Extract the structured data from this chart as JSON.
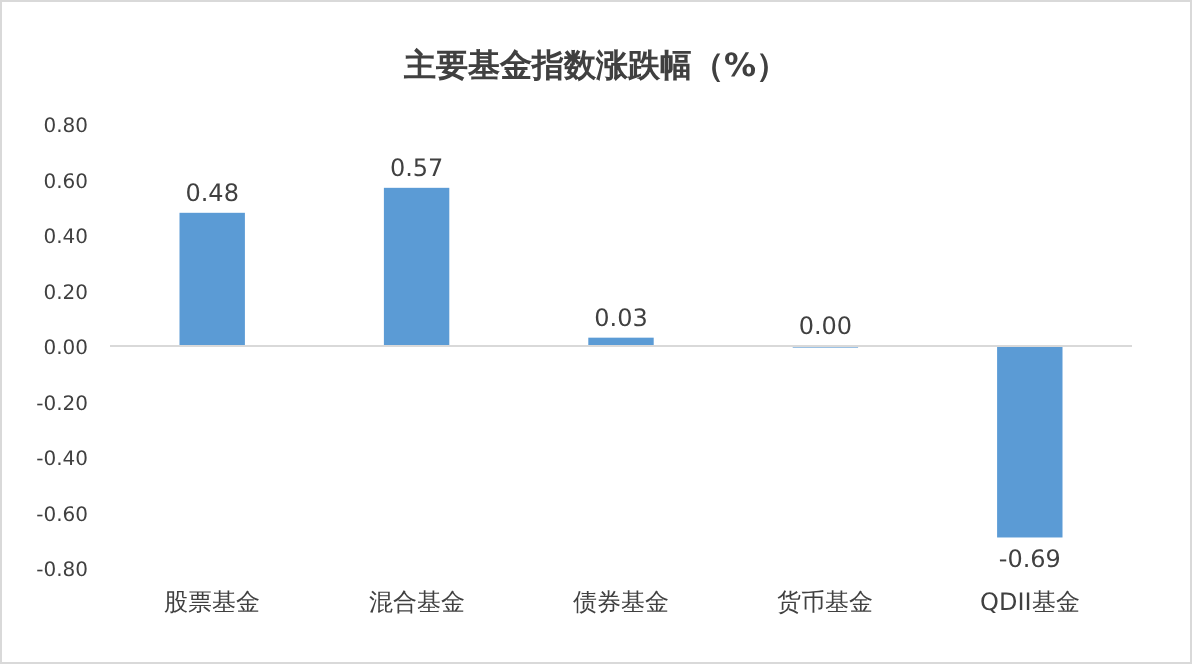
{
  "chart_data": {
    "type": "bar",
    "title": "主要基金指数涨跌幅（%）",
    "categories": [
      "股票基金",
      "混合基金",
      "债券基金",
      "货币基金",
      "QDII基金"
    ],
    "values": [
      0.48,
      0.57,
      0.03,
      0.0,
      -0.69
    ],
    "value_labels": [
      "0.48",
      "0.57",
      "0.03",
      "0.00",
      "-0.69"
    ],
    "color": "#5b9bd5",
    "ylim": [
      -0.8,
      0.8
    ],
    "yticks": [
      {
        "value": -0.8,
        "label": "-0.80"
      },
      {
        "value": -0.6,
        "label": "-0.60"
      },
      {
        "value": -0.4,
        "label": "-0.40"
      },
      {
        "value": -0.2,
        "label": "-0.20"
      },
      {
        "value": 0,
        "label": "0.00"
      },
      {
        "value": 0.2,
        "label": "0.20"
      },
      {
        "value": 0.4,
        "label": "0.40"
      },
      {
        "value": 0.6,
        "label": "0.60"
      },
      {
        "value": 0.8,
        "label": "0.80"
      }
    ],
    "ylabel": null
  }
}
